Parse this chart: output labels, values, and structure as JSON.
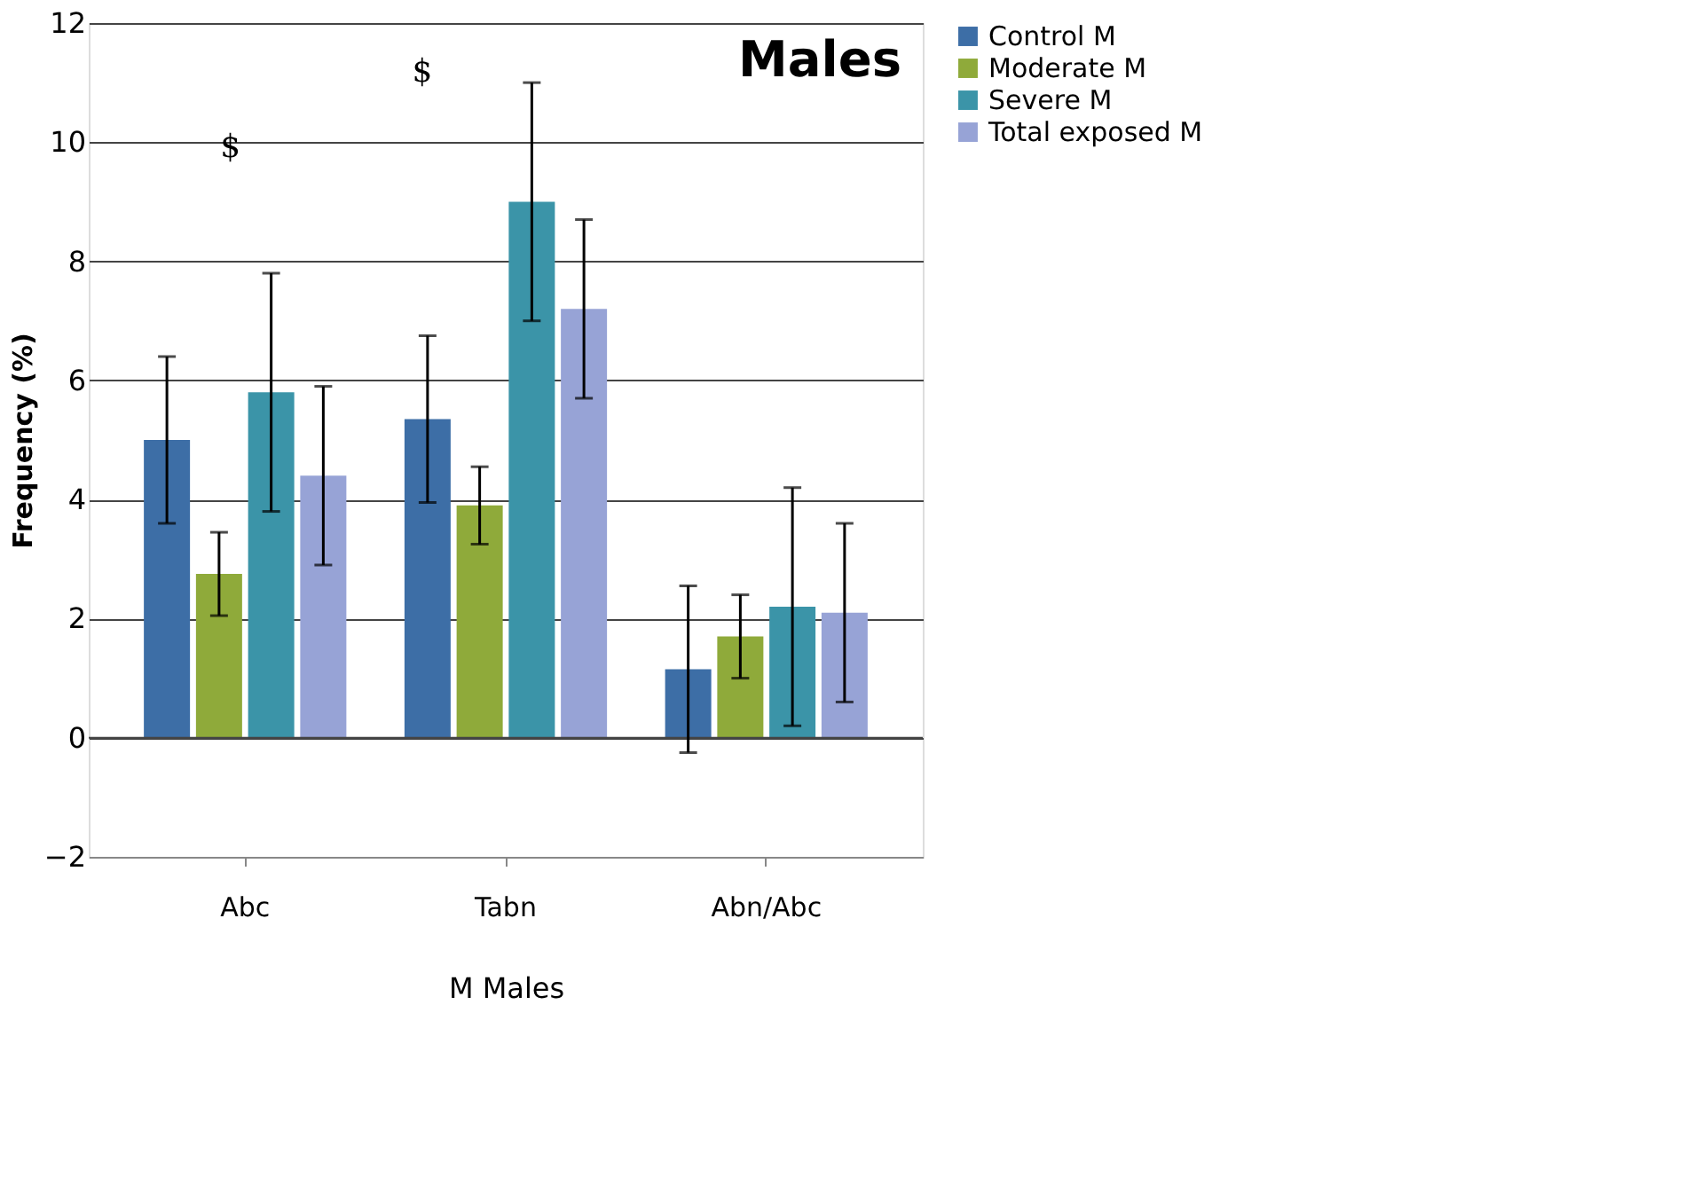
{
  "chart_data": {
    "type": "bar",
    "title": "Males",
    "ylabel": "Frequency (%)",
    "xlabel": "M Males",
    "categories": [
      "Abc",
      "Tabn",
      "Abn/Abc"
    ],
    "series": [
      {
        "name": "Control M",
        "color": "#3d6ea6",
        "values": [
          5.0,
          5.35,
          1.15
        ],
        "errors": [
          1.4,
          1.4,
          1.4
        ]
      },
      {
        "name": "Moderate M",
        "color": "#8faa3a",
        "values": [
          2.75,
          3.9,
          1.7
        ],
        "errors": [
          0.7,
          0.65,
          0.7
        ]
      },
      {
        "name": "Severe M",
        "color": "#3b94a8",
        "values": [
          5.8,
          9.0,
          2.2
        ],
        "errors": [
          2.0,
          2.0,
          2.0
        ]
      },
      {
        "name": "Total exposed M",
        "color": "#97a3d6",
        "values": [
          4.4,
          7.2,
          2.1
        ],
        "errors": [
          1.5,
          1.5,
          1.5
        ]
      }
    ],
    "annotations": [
      "$",
      "$"
    ],
    "ylim": [
      -2,
      12
    ],
    "yticks": [
      -2,
      0,
      2,
      4,
      6,
      8,
      10,
      12
    ],
    "grid": "y",
    "legend": "right"
  }
}
